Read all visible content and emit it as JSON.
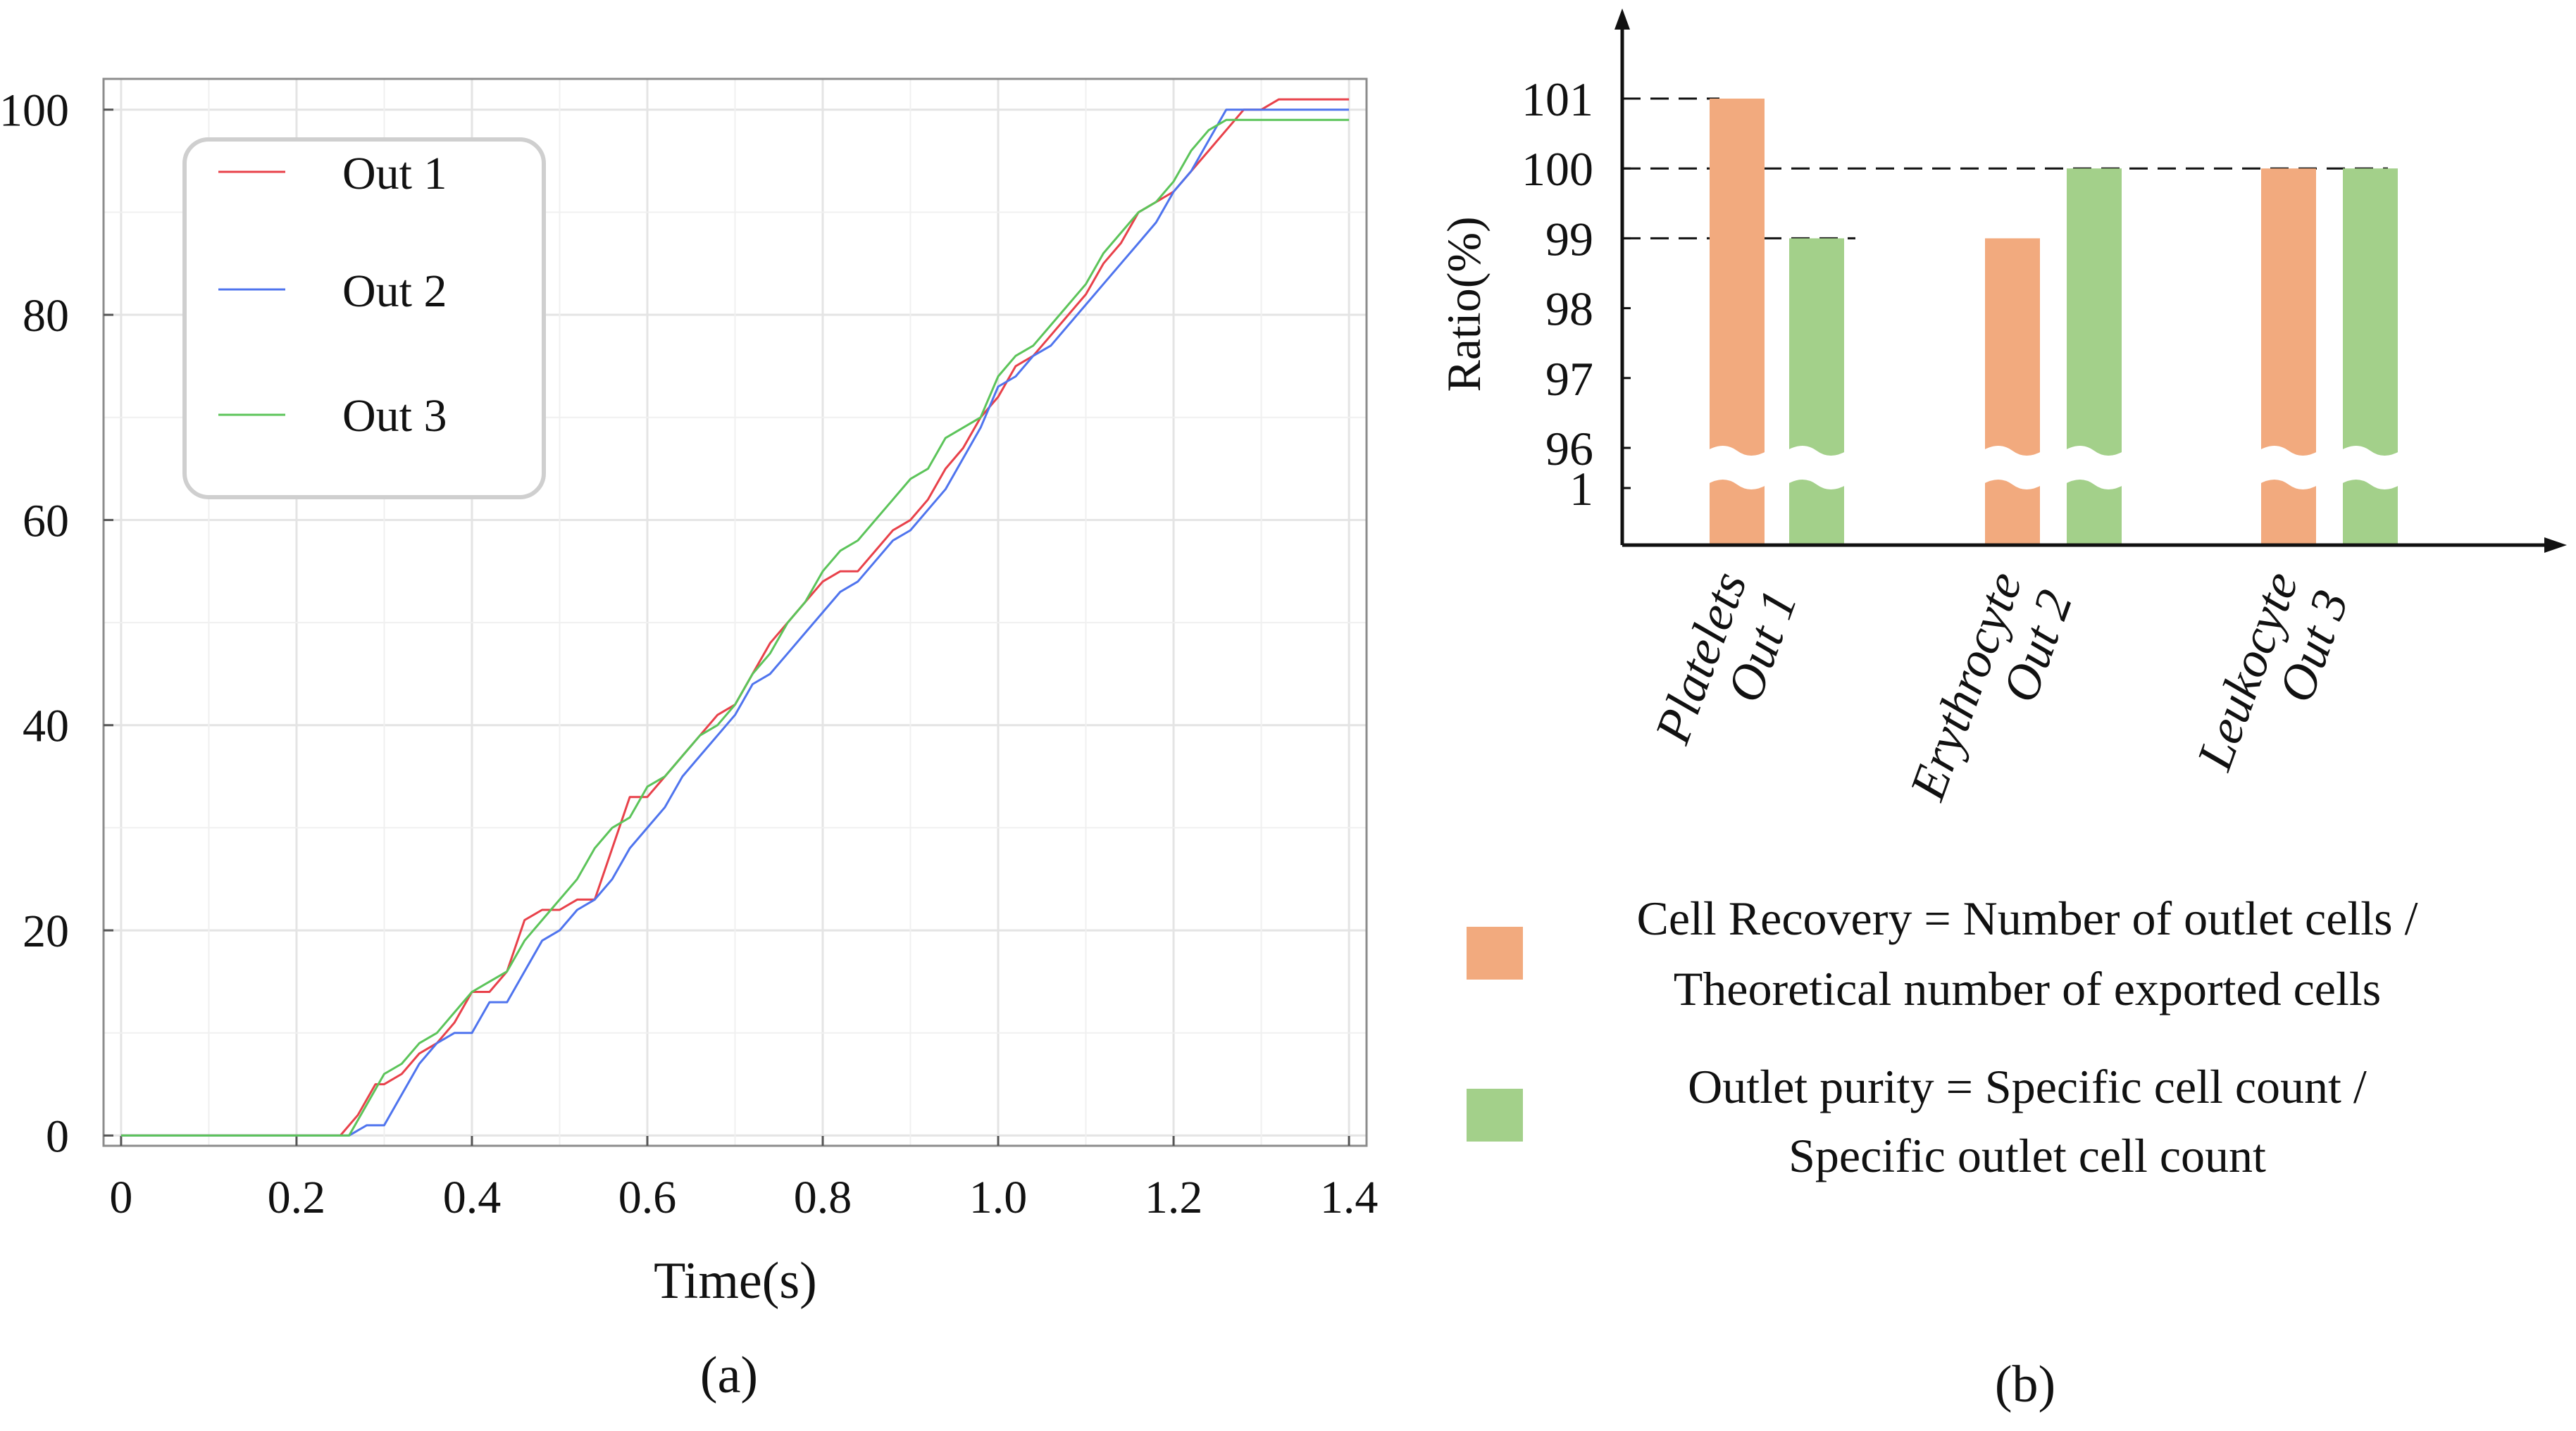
{
  "colors": {
    "out1": "#e8414a",
    "out2": "#4f74ee",
    "out3": "#5cc45a",
    "recovery": "#f2aa7e",
    "purity": "#a3d08a",
    "grid": "#e4e4e4",
    "axis": "#111111",
    "frame": "#8c8c8c"
  },
  "chart_data": [
    {
      "type": "line",
      "panel_label": "(a)",
      "xlabel": "Time(s)",
      "ylabel": "",
      "xlim": [
        -0.02,
        1.42
      ],
      "ylim": [
        -1,
        103
      ],
      "grid": true,
      "legend_position": "top-left",
      "x_ticks": [
        0,
        0.2,
        0.4,
        0.6,
        0.8,
        1.0,
        1.2,
        1.4
      ],
      "x_tick_labels": [
        "0",
        "0.2",
        "0.4",
        "0.6",
        "0.8",
        "1.0",
        "1.2",
        "1.4"
      ],
      "y_ticks": [
        0,
        20,
        40,
        60,
        80,
        100
      ],
      "y_tick_labels": [
        "0",
        "20",
        "40",
        "60",
        "80",
        "100"
      ],
      "series": [
        {
          "name": "Out 1",
          "color": "#e8414a",
          "x": [
            0,
            0.25,
            0.27,
            0.29,
            0.3,
            0.32,
            0.34,
            0.36,
            0.38,
            0.4,
            0.42,
            0.44,
            0.46,
            0.48,
            0.5,
            0.52,
            0.54,
            0.56,
            0.58,
            0.6,
            0.62,
            0.64,
            0.66,
            0.68,
            0.7,
            0.72,
            0.74,
            0.76,
            0.78,
            0.8,
            0.82,
            0.84,
            0.86,
            0.88,
            0.9,
            0.92,
            0.94,
            0.96,
            0.98,
            1.0,
            1.02,
            1.04,
            1.06,
            1.08,
            1.1,
            1.12,
            1.14,
            1.16,
            1.18,
            1.2,
            1.22,
            1.24,
            1.26,
            1.28,
            1.3,
            1.32,
            1.4
          ],
          "values": [
            0,
            0,
            2,
            5,
            5,
            6,
            8,
            9,
            11,
            14,
            14,
            16,
            21,
            22,
            22,
            23,
            23,
            28,
            33,
            33,
            35,
            37,
            39,
            41,
            42,
            45,
            48,
            50,
            52,
            54,
            55,
            55,
            57,
            59,
            60,
            62,
            65,
            67,
            70,
            72,
            75,
            76,
            78,
            80,
            82,
            85,
            87,
            90,
            91,
            92,
            94,
            96,
            98,
            100,
            100,
            101,
            101
          ]
        },
        {
          "name": "Out 2",
          "color": "#4f74ee",
          "x": [
            0,
            0.26,
            0.28,
            0.3,
            0.32,
            0.34,
            0.36,
            0.38,
            0.4,
            0.42,
            0.44,
            0.46,
            0.48,
            0.5,
            0.52,
            0.54,
            0.56,
            0.58,
            0.6,
            0.62,
            0.64,
            0.66,
            0.68,
            0.7,
            0.72,
            0.74,
            0.76,
            0.78,
            0.8,
            0.82,
            0.84,
            0.86,
            0.88,
            0.9,
            0.92,
            0.94,
            0.96,
            0.98,
            1.0,
            1.02,
            1.04,
            1.06,
            1.08,
            1.1,
            1.12,
            1.14,
            1.16,
            1.18,
            1.2,
            1.22,
            1.24,
            1.26,
            1.28,
            1.3,
            1.4
          ],
          "values": [
            0,
            0,
            1,
            1,
            4,
            7,
            9,
            10,
            10,
            13,
            13,
            16,
            19,
            20,
            22,
            23,
            25,
            28,
            30,
            32,
            35,
            37,
            39,
            41,
            44,
            45,
            47,
            49,
            51,
            53,
            54,
            56,
            58,
            59,
            61,
            63,
            66,
            69,
            73,
            74,
            76,
            77,
            79,
            81,
            83,
            85,
            87,
            89,
            92,
            94,
            97,
            100,
            100,
            100,
            100
          ]
        },
        {
          "name": "Out 3",
          "color": "#5cc45a",
          "x": [
            0,
            0.26,
            0.28,
            0.3,
            0.32,
            0.34,
            0.36,
            0.38,
            0.4,
            0.42,
            0.44,
            0.46,
            0.48,
            0.5,
            0.52,
            0.54,
            0.56,
            0.58,
            0.6,
            0.62,
            0.64,
            0.66,
            0.68,
            0.7,
            0.72,
            0.74,
            0.76,
            0.78,
            0.8,
            0.82,
            0.84,
            0.86,
            0.88,
            0.9,
            0.92,
            0.94,
            0.96,
            0.98,
            1.0,
            1.02,
            1.04,
            1.06,
            1.08,
            1.1,
            1.12,
            1.14,
            1.16,
            1.18,
            1.2,
            1.22,
            1.24,
            1.26,
            1.28,
            1.3,
            1.4
          ],
          "values": [
            0,
            0,
            3,
            6,
            7,
            9,
            10,
            12,
            14,
            15,
            16,
            19,
            21,
            23,
            25,
            28,
            30,
            31,
            34,
            35,
            37,
            39,
            40,
            42,
            45,
            47,
            50,
            52,
            55,
            57,
            58,
            60,
            62,
            64,
            65,
            68,
            69,
            70,
            74,
            76,
            77,
            79,
            81,
            83,
            86,
            88,
            90,
            91,
            93,
            96,
            98,
            99,
            99,
            99,
            99
          ]
        }
      ]
    },
    {
      "type": "bar",
      "panel_label": "(b)",
      "ylabel": "Ratio(%)",
      "broken_axis": true,
      "y_tick_labels": [
        "1",
        "96",
        "97",
        "98",
        "99",
        "100",
        "101"
      ],
      "reference_lines": [
        101,
        100,
        99
      ],
      "categories": [
        "Platelets\nOut 1",
        "Erythrocyte\nOut 2",
        "Leukocyte\nOut 3"
      ],
      "category_lines": [
        [
          "Platelets",
          "Out 1"
        ],
        [
          "Erythrocyte",
          "Out 2"
        ],
        [
          "Leukocyte",
          "Out 3"
        ]
      ],
      "series": [
        {
          "name": "Cell Recovery",
          "color": "#f2aa7e",
          "values": [
            101,
            99,
            100
          ]
        },
        {
          "name": "Outlet purity",
          "color": "#a3d08a",
          "values": [
            99,
            100,
            100
          ]
        }
      ],
      "legend": [
        {
          "color": "#f2aa7e",
          "lines": [
            "Cell Recovery = Number of outlet cells /",
            "Theoretical number of exported cells"
          ]
        },
        {
          "color": "#a3d08a",
          "lines": [
            "Outlet purity = Specific cell count /",
            "Specific outlet cell count"
          ]
        }
      ]
    }
  ]
}
